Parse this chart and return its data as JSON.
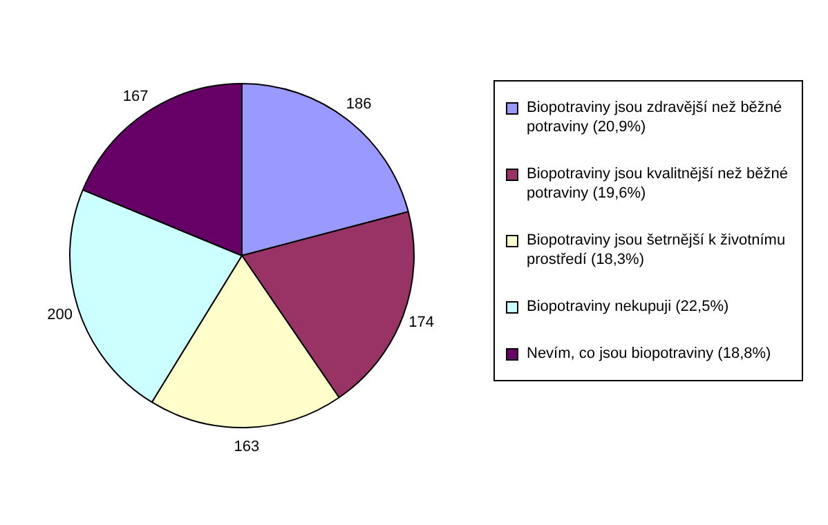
{
  "chart_data": {
    "type": "pie",
    "categories": [
      "Biopotraviny jsou zdravější než běžné potraviny (20,9%)",
      "Biopotraviny jsou kvalitnější než běžné potraviny (19,6%)",
      "Biopotraviny jsou šetrnější k životnímu prostředí (18,3%)",
      "Biopotraviny nekupuji (22,5%)",
      "Nevím, co jsou biopotraviny (18,8%)"
    ],
    "values": [
      186,
      174,
      163,
      200,
      167
    ],
    "colors": [
      "#9999ff",
      "#993366",
      "#ffffcc",
      "#ccffff",
      "#660066"
    ],
    "data_labels": true,
    "legend": "right"
  }
}
